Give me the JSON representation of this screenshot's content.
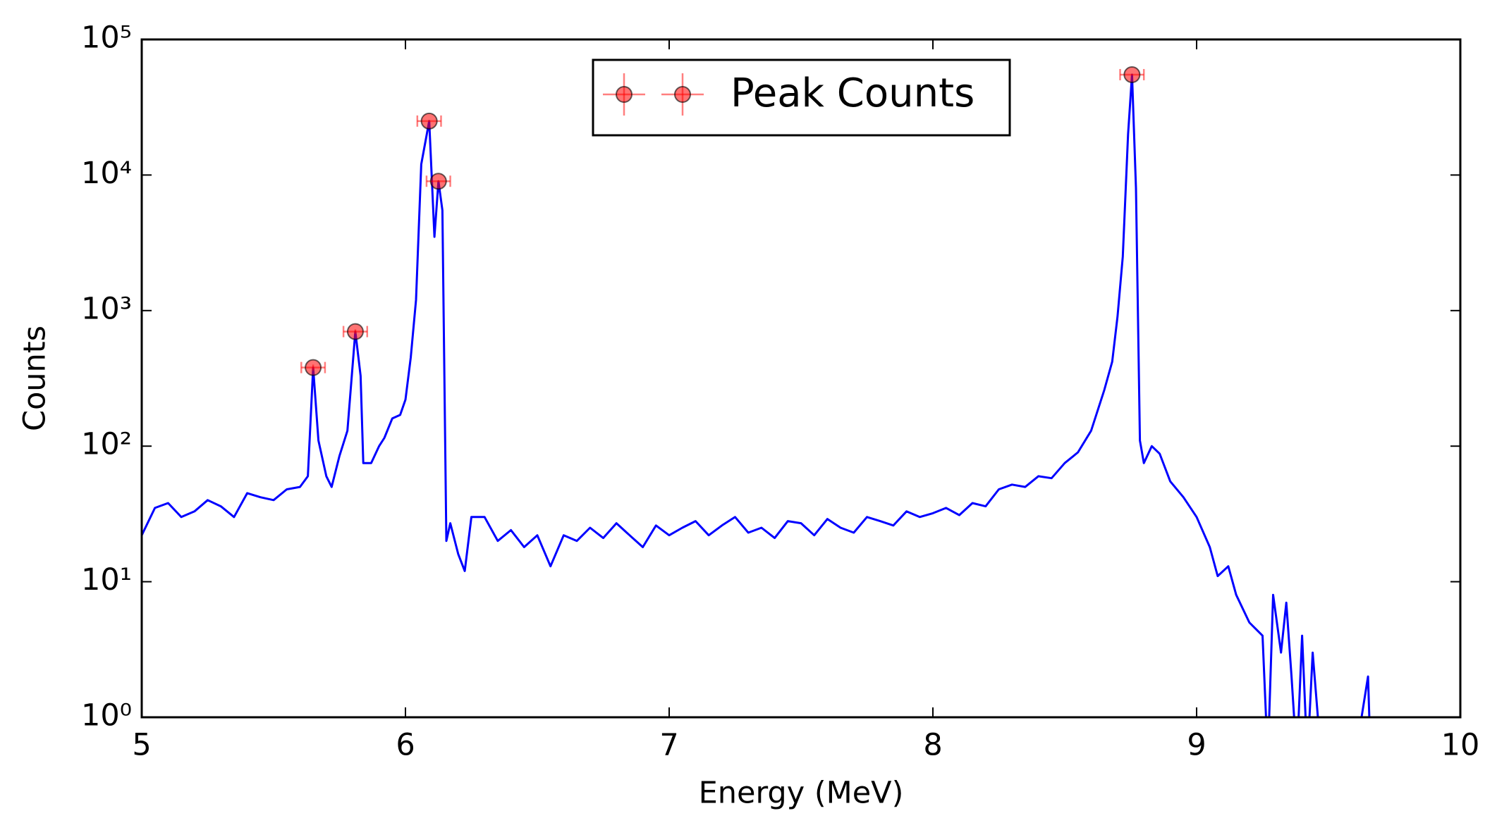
{
  "chart_data": {
    "type": "line",
    "xlabel": "Energy (MeV)",
    "ylabel": "Counts",
    "log_y": true,
    "xlim": [
      5,
      10
    ],
    "xticks": [
      5,
      6,
      7,
      8,
      9,
      10
    ],
    "ylim": [
      1,
      100000
    ],
    "yticks": [
      {
        "value": 1,
        "label": "10⁰"
      },
      {
        "value": 10,
        "label": "10¹"
      },
      {
        "value": 100,
        "label": "10²"
      },
      {
        "value": 1000,
        "label": "10³"
      },
      {
        "value": 10000,
        "label": "10⁴"
      },
      {
        "value": 100000,
        "label": "10⁵"
      }
    ],
    "spectrum": {
      "color": "#0000ff",
      "x": [
        5.0,
        5.05,
        5.1,
        5.15,
        5.2,
        5.25,
        5.3,
        5.35,
        5.4,
        5.45,
        5.5,
        5.55,
        5.6,
        5.63,
        5.65,
        5.67,
        5.7,
        5.72,
        5.75,
        5.78,
        5.81,
        5.83,
        5.84,
        5.87,
        5.9,
        5.92,
        5.95,
        5.98,
        6.0,
        6.02,
        6.04,
        6.06,
        6.09,
        6.11,
        6.125,
        6.14,
        6.155,
        6.17,
        6.2,
        6.225,
        6.25,
        6.3,
        6.35,
        6.4,
        6.45,
        6.5,
        6.55,
        6.6,
        6.65,
        6.7,
        6.75,
        6.8,
        6.85,
        6.9,
        6.95,
        7.0,
        7.05,
        7.1,
        7.15,
        7.2,
        7.25,
        7.3,
        7.35,
        7.4,
        7.45,
        7.5,
        7.55,
        7.6,
        7.65,
        7.7,
        7.75,
        7.8,
        7.85,
        7.9,
        7.95,
        8.0,
        8.05,
        8.1,
        8.15,
        8.2,
        8.25,
        8.3,
        8.35,
        8.4,
        8.45,
        8.5,
        8.55,
        8.6,
        8.65,
        8.68,
        8.7,
        8.72,
        8.74,
        8.755,
        8.77,
        8.785,
        8.8,
        8.83,
        8.86,
        8.9,
        8.95,
        9.0,
        9.05,
        9.08,
        9.12,
        9.15,
        9.2,
        9.25,
        9.27,
        9.29,
        9.32,
        9.34,
        9.36,
        9.38,
        9.4,
        9.42,
        9.44,
        9.46,
        9.48,
        9.6,
        9.65,
        9.66,
        10.0
      ],
      "values": [
        22,
        35,
        38,
        30,
        33,
        40,
        36,
        30,
        45,
        42,
        40,
        48,
        50,
        60,
        380,
        110,
        60,
        50,
        85,
        130,
        700,
        330,
        75,
        75,
        100,
        115,
        160,
        170,
        220,
        450,
        1200,
        12000,
        25000,
        3500,
        9000,
        5500,
        20,
        27,
        16,
        12,
        30,
        30,
        20,
        24,
        18,
        22,
        13,
        22,
        20,
        25,
        21,
        27,
        22,
        18,
        26,
        22,
        25,
        28,
        22,
        26,
        30,
        23,
        25,
        21,
        28,
        27,
        22,
        29,
        25,
        23,
        30,
        28,
        26,
        33,
        30,
        32,
        35,
        31,
        38,
        36,
        48,
        52,
        50,
        60,
        58,
        75,
        90,
        130,
        260,
        420,
        900,
        2500,
        20000,
        55000,
        8000,
        110,
        75,
        100,
        88,
        55,
        42,
        30,
        18,
        11,
        13,
        8,
        5,
        4,
        0,
        8,
        3,
        7,
        2,
        0,
        4,
        0,
        3,
        1,
        0,
        0,
        2,
        0,
        0
      ]
    },
    "series": [
      {
        "name": "Peak Counts",
        "color": "#ff0000",
        "x": [
          5.65,
          5.81,
          6.09,
          6.125,
          8.755
        ],
        "values": [
          380,
          700,
          25000,
          9000,
          55000
        ],
        "xerr": [
          0.045,
          0.045,
          0.045,
          0.045,
          0.045
        ],
        "yerr": [
          19.5,
          26.5,
          158,
          95,
          235
        ]
      }
    ]
  }
}
